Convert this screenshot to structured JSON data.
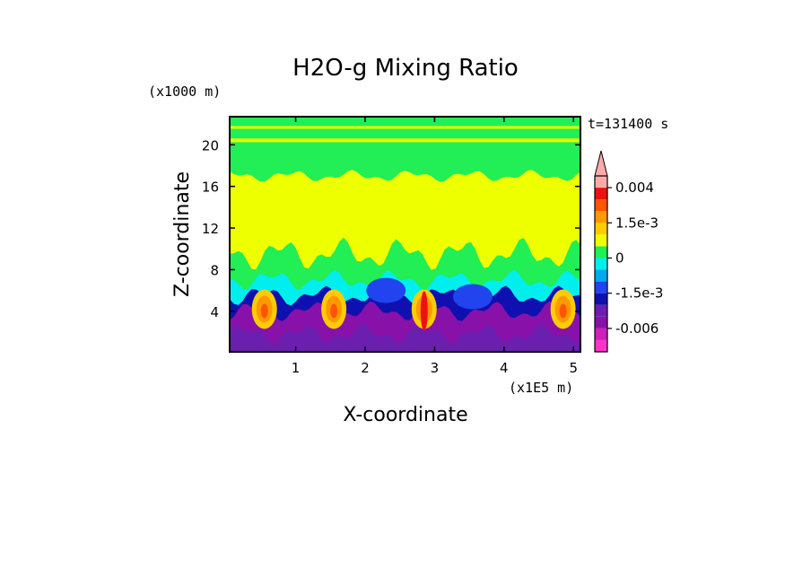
{
  "chart_data": {
    "type": "heatmap",
    "title": "H2O-g Mixing Ratio",
    "xlabel": "X-coordinate",
    "ylabel": "Z-coordinate",
    "x_unit": "(x1E5 m)",
    "y_unit": "(x1000 m)",
    "time_label": "t=131400 s",
    "xlim": [
      0.05,
      5.1
    ],
    "ylim": [
      0.1,
      22.7
    ],
    "x_ticks": [
      "1",
      "2",
      "3",
      "4",
      "5"
    ],
    "x_tick_values": [
      1,
      2,
      3,
      4,
      5
    ],
    "y_ticks": [
      "4",
      "8",
      "12",
      "16",
      "20"
    ],
    "y_tick_values": [
      4,
      8,
      12,
      16,
      20
    ],
    "colorbar": {
      "labels": [
        "0.004",
        "1.5e-3",
        "0",
        "-1.5e-3",
        "-0.006"
      ],
      "label_values": [
        0.004,
        0.0015,
        0,
        -0.0015,
        -0.006
      ],
      "levels": [
        -0.009,
        -0.006,
        -0.004,
        -0.003,
        -0.0015,
        -0.001,
        -0.0005,
        0,
        0.0005,
        0.001,
        0.0015,
        0.002,
        0.003,
        0.004,
        0.006
      ],
      "colors": [
        "#ff33cc",
        "#cc22bb",
        "#8811aa",
        "#6a1fb0",
        "#1010b0",
        "#2244ee",
        "#00aaee",
        "#00eeee",
        "#22ee55",
        "#eeff00",
        "#ffcc00",
        "#ff9900",
        "#ff5500",
        "#ee1111",
        "#ffaaaa"
      ],
      "extend": "max"
    },
    "bands": [
      {
        "z_top": 1.8,
        "level": "purple",
        "color": "#6a1fb0"
      },
      {
        "z_top": 4.0,
        "level": "purple-dark",
        "color": "#8811aa"
      },
      {
        "z_top": 5.5,
        "level": "blue",
        "color": "#1010b0"
      },
      {
        "z_top": 7.0,
        "level": "cyan",
        "color": "#00eeee"
      },
      {
        "z_top": 9.5,
        "level": "green",
        "color": "#22ee55"
      },
      {
        "z_top": 17.0,
        "level": "yellow",
        "color": "#eeff00"
      },
      {
        "z_top": 22.7,
        "level": "green",
        "color": "#22ee55"
      }
    ],
    "maxima_x": [
      0.55,
      1.55,
      2.85,
      4.85
    ],
    "grid": false
  }
}
